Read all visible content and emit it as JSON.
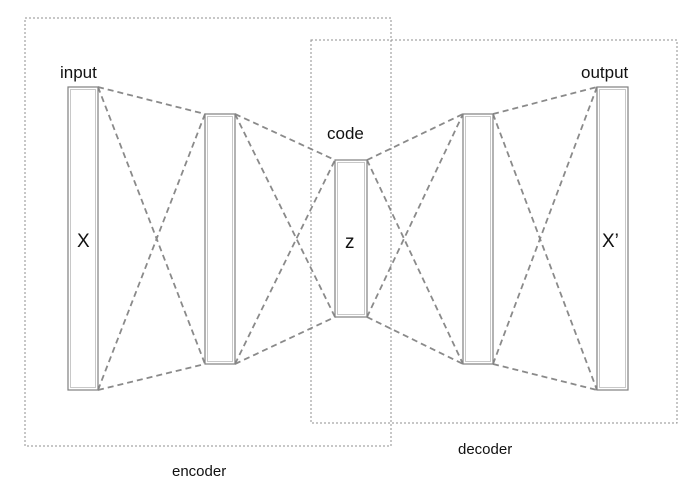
{
  "labels": {
    "input": "input",
    "output": "output",
    "code": "code",
    "x": "X",
    "z": "z",
    "x_prime": "X’",
    "encoder": "encoder",
    "decoder": "decoder"
  }
}
